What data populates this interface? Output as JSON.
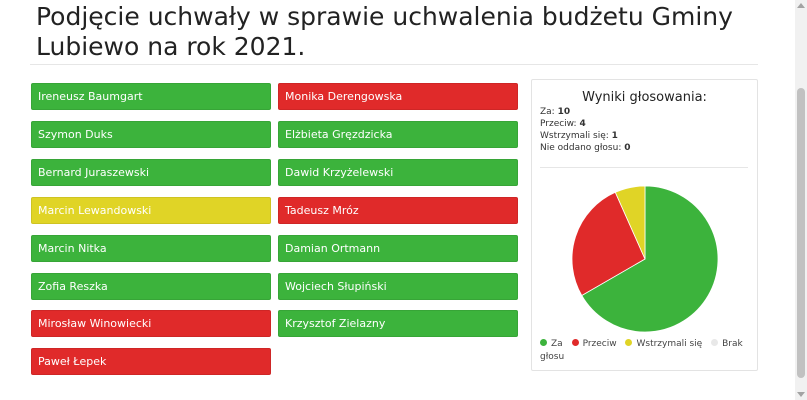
{
  "page": {
    "title": "Podjęcie uchwały w sprawie uchwalenia budżetu Gminy Lubiewo na rok 2021."
  },
  "colors": {
    "za": "#3cb33c",
    "przeciw": "#e02a2a",
    "wstrzymal": "#e0d426",
    "brak": "#e8e8e8"
  },
  "voters": [
    {
      "name": "Ireneusz Baumgart",
      "vote": "za"
    },
    {
      "name": "Szymon Duks",
      "vote": "za"
    },
    {
      "name": "Bernard Juraszewski",
      "vote": "za"
    },
    {
      "name": "Marcin Lewandowski",
      "vote": "wstrzymal"
    },
    {
      "name": "Marcin Nitka",
      "vote": "za"
    },
    {
      "name": "Zofia Reszka",
      "vote": "za"
    },
    {
      "name": "Mirosław Winowiecki",
      "vote": "przeciw"
    },
    {
      "name": "Paweł Łepek",
      "vote": "przeciw"
    },
    {
      "name": "Monika Derengowska",
      "vote": "przeciw"
    },
    {
      "name": "Elżbieta Gręzdzicka",
      "vote": "za"
    },
    {
      "name": "Dawid Krzyżelewski",
      "vote": "za"
    },
    {
      "name": "Tadeusz Mróz",
      "vote": "przeciw"
    },
    {
      "name": "Damian Ortmann",
      "vote": "za"
    },
    {
      "name": "Wojciech Słupiński",
      "vote": "za"
    },
    {
      "name": "Krzysztof Zielazny",
      "vote": "za"
    }
  ],
  "results": {
    "title": "Wyniki głosowania:",
    "stats": [
      {
        "label": "Za:",
        "value": "10"
      },
      {
        "label": "Przeciw:",
        "value": "4"
      },
      {
        "label": "Wstrzymali się:",
        "value": "1"
      },
      {
        "label": "Nie oddano głosu:",
        "value": "0"
      }
    ]
  },
  "chart_data": {
    "type": "pie",
    "slices": [
      {
        "label": "Za",
        "value": 10,
        "color": "#3cb33c"
      },
      {
        "label": "Przeciw",
        "value": 4,
        "color": "#e02a2a"
      },
      {
        "label": "Wstrzymali się",
        "value": 1,
        "color": "#e0d426"
      },
      {
        "label": "Brak głosu",
        "value": 0,
        "color": "#e8e8e8"
      }
    ],
    "legend_position": "bottom"
  }
}
